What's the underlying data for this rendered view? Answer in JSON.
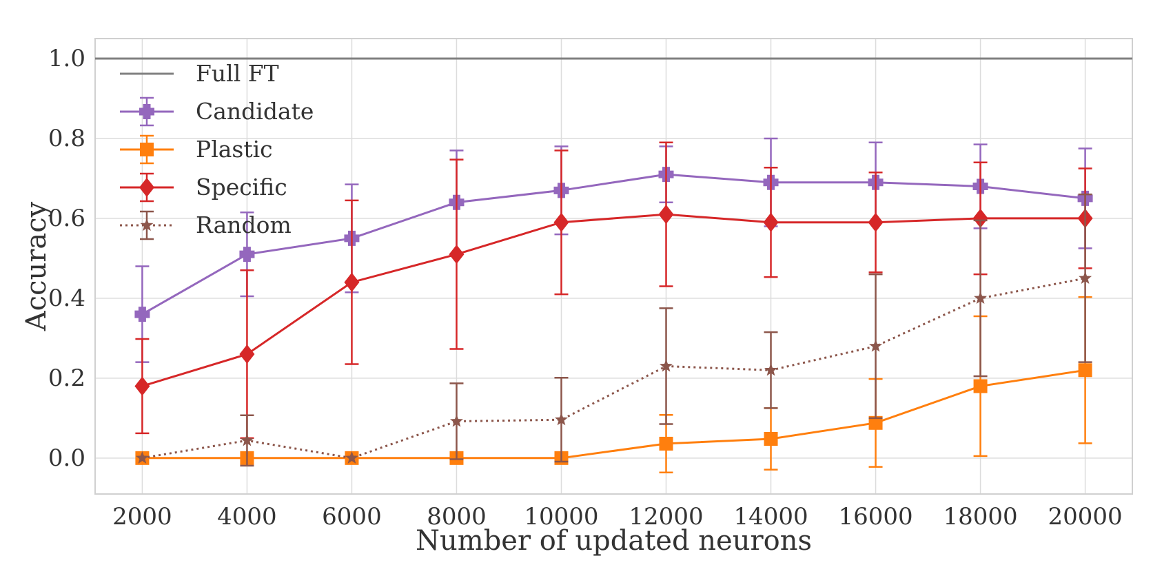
{
  "chart_data": {
    "type": "line",
    "title": "",
    "xlabel": "Number of updated neurons",
    "ylabel": "Accuracy",
    "x": [
      2000,
      4000,
      6000,
      8000,
      10000,
      12000,
      14000,
      16000,
      18000,
      20000
    ],
    "x_ticks": [
      "2000",
      "4000",
      "6000",
      "8000",
      "10000",
      "12000",
      "14000",
      "16000",
      "18000",
      "20000"
    ],
    "y_ticks": [
      "0.0",
      "0.2",
      "0.4",
      "0.6",
      "0.8",
      "1.0"
    ],
    "xlim": [
      1100,
      20900
    ],
    "ylim": [
      -0.09,
      1.05
    ],
    "grid": true,
    "legend_position": "top-left",
    "reference_line": {
      "name": "Full FT",
      "value": 1.0,
      "color": "#808080"
    },
    "series": [
      {
        "name": "Candidate",
        "color": "#9467bd",
        "marker": "plus",
        "dashed": false,
        "values": [
          0.36,
          0.51,
          0.55,
          0.64,
          0.67,
          0.71,
          0.69,
          0.69,
          0.68,
          0.65
        ],
        "errors": [
          0.12,
          0.105,
          0.135,
          0.13,
          0.11,
          0.07,
          0.11,
          0.1,
          0.105,
          0.125
        ]
      },
      {
        "name": "Plastic",
        "color": "#ff7f0e",
        "marker": "square",
        "dashed": false,
        "values": [
          0.0,
          0.0,
          0.0,
          0.0,
          0.0,
          0.036,
          0.048,
          0.088,
          0.18,
          0.22
        ],
        "errors": [
          0.0,
          0.0,
          0.0,
          0.0,
          0.0,
          0.072,
          0.077,
          0.11,
          0.175,
          0.183
        ]
      },
      {
        "name": "Specific",
        "color": "#d62728",
        "marker": "diamond",
        "dashed": false,
        "values": [
          0.18,
          0.26,
          0.44,
          0.51,
          0.59,
          0.61,
          0.59,
          0.59,
          0.6,
          0.6
        ],
        "errors": [
          0.118,
          0.21,
          0.205,
          0.237,
          0.18,
          0.18,
          0.137,
          0.125,
          0.14,
          0.125
        ]
      },
      {
        "name": "Random",
        "color": "#8c564b",
        "marker": "star",
        "dashed": true,
        "values": [
          0.0,
          0.044,
          0.0,
          0.092,
          0.096,
          0.23,
          0.22,
          0.28,
          0.4,
          0.45
        ],
        "errors": [
          0.0,
          0.063,
          0.0,
          0.095,
          0.105,
          0.145,
          0.095,
          0.18,
          0.195,
          0.21
        ]
      }
    ]
  }
}
